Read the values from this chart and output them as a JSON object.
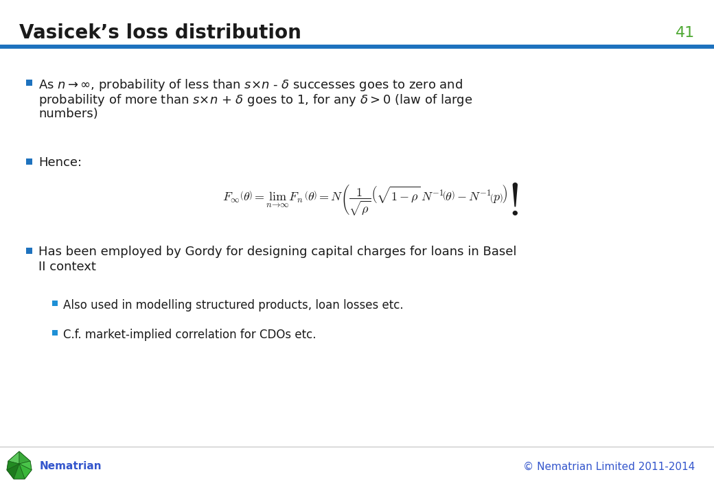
{
  "title": "Vasicek’s loss distribution",
  "slide_number": "41",
  "title_color": "#1a1a1a",
  "header_line_color": "#1e72be",
  "slide_number_color": "#4da832",
  "background_color": "#ffffff",
  "bullet_color": "#1e72be",
  "sub_bullet_color": "#1e90d6",
  "text_color": "#1a1a1a",
  "footer_text_left": "Nematrian",
  "footer_text_right": "© Nematrian Limited 2011-2014",
  "footer_color": "#3355cc",
  "title_fontsize": 20,
  "slide_number_fontsize": 16,
  "body_fontsize": 13,
  "sub_fontsize": 12,
  "formula_fontsize": 13,
  "footer_fontsize": 11
}
